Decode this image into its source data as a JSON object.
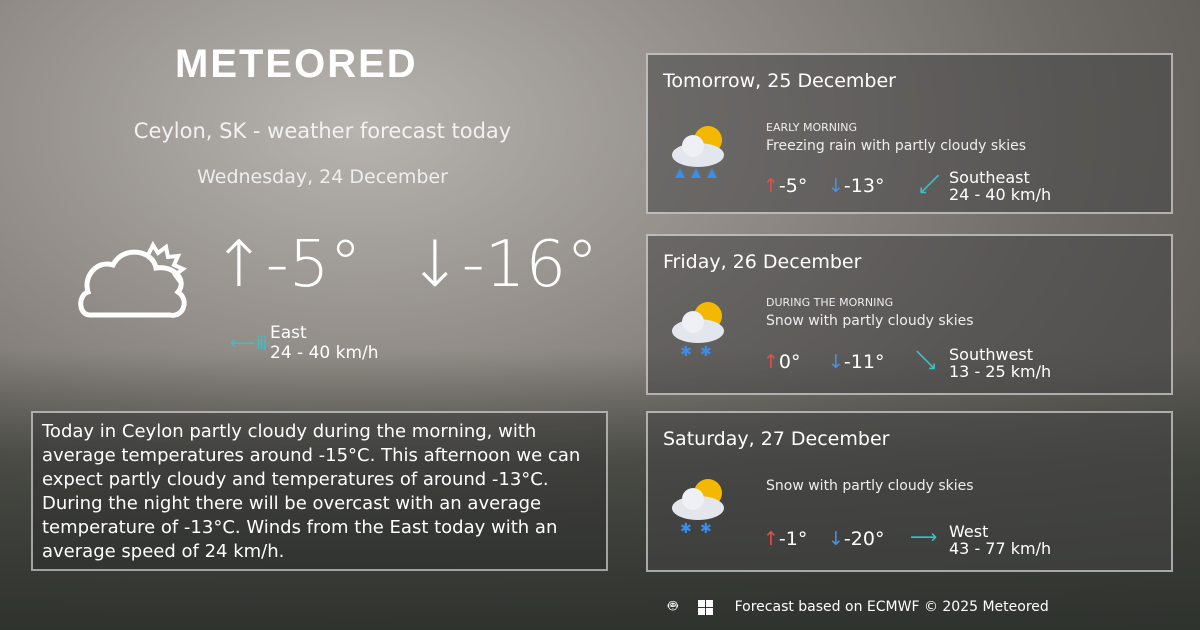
{
  "logo": "METEORED",
  "title": "Ceylon, SK - weather forecast today",
  "date": "Wednesday, 24 December",
  "today": {
    "max": "-5°",
    "min": "-16°",
    "wind_dir": "East",
    "wind_speed": "24 - 40 km/h",
    "icon": "partly-cloudy-outline-icon"
  },
  "description": "Today in Ceylon partly cloudy during the morning, with average temperatures around -15°C. This afternoon we can expect partly cloudy and temperatures of around -13°C. During the night there will be overcast with an average temperature of -13°C. Winds from the East today with an average speed of 24 km/h.",
  "forecast": [
    {
      "day": "Tomorrow, 25 December",
      "period": "EARLY MORNING",
      "summary": "Freezing rain with partly cloudy skies",
      "max": "-5°",
      "min": "-13°",
      "wind_dir": "Southeast",
      "wind_speed": "24 - 40 km/h",
      "icon": "freezing-rain-icon"
    },
    {
      "day": "Friday, 26 December",
      "period": "DURING THE MORNING",
      "summary": "Snow with partly cloudy skies",
      "max": "0°",
      "min": "-11°",
      "wind_dir": "Southwest",
      "wind_speed": "13 - 25 km/h",
      "icon": "snow-icon"
    },
    {
      "day": "Saturday, 27 December",
      "period": "",
      "summary": "Snow with partly cloudy skies",
      "max": "-1°",
      "min": "-20°",
      "wind_dir": "West",
      "wind_speed": "43 - 77 km/h",
      "icon": "snow-icon"
    }
  ],
  "footer": "Forecast based on ECMWF © 2025 Meteored",
  "colors": {
    "max": "#e05050",
    "min": "#4a90e0",
    "wind": "#3cc0c8"
  }
}
